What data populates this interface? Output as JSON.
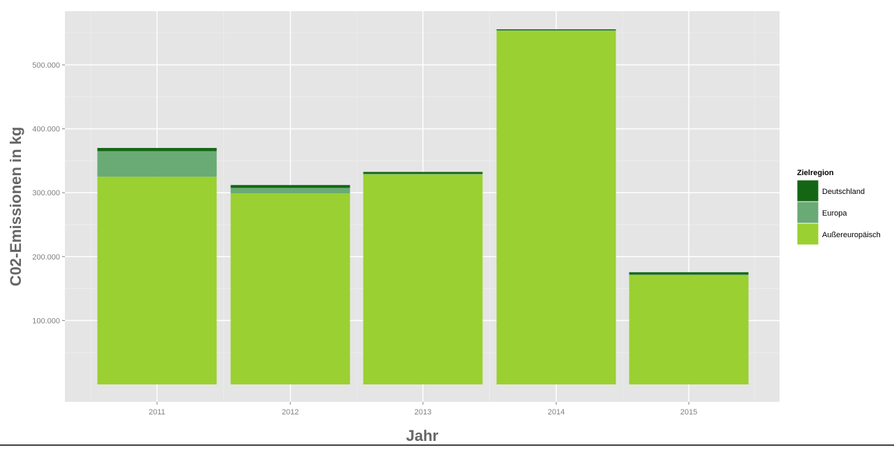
{
  "chart_data": {
    "type": "bar",
    "stacked": true,
    "categories": [
      "2011",
      "2012",
      "2013",
      "2014",
      "2015"
    ],
    "xlabel": "Jahr",
    "ylabel": "C02-Emissionen in kg",
    "ylim": [
      0,
      600000
    ],
    "yticks": [
      100000,
      200000,
      300000,
      400000,
      500000
    ],
    "ytick_labels": [
      "100.000",
      "200.000",
      "300.000",
      "400.000",
      "500.000"
    ],
    "grid": true,
    "legend": {
      "title": "Zielregion",
      "position": "right"
    },
    "series": [
      {
        "name": "Außereuropäisch",
        "color": "#9ad031",
        "values": [
          325000,
          299000,
          328500,
          554000,
          171000
        ]
      },
      {
        "name": "Europa",
        "color": "#6aaa74",
        "values": [
          40000,
          8500,
          1000,
          200,
          1000
        ]
      },
      {
        "name": "Deutschland",
        "color": "#146614",
        "values": [
          5000,
          4500,
          3000,
          1500,
          3500
        ]
      }
    ]
  }
}
